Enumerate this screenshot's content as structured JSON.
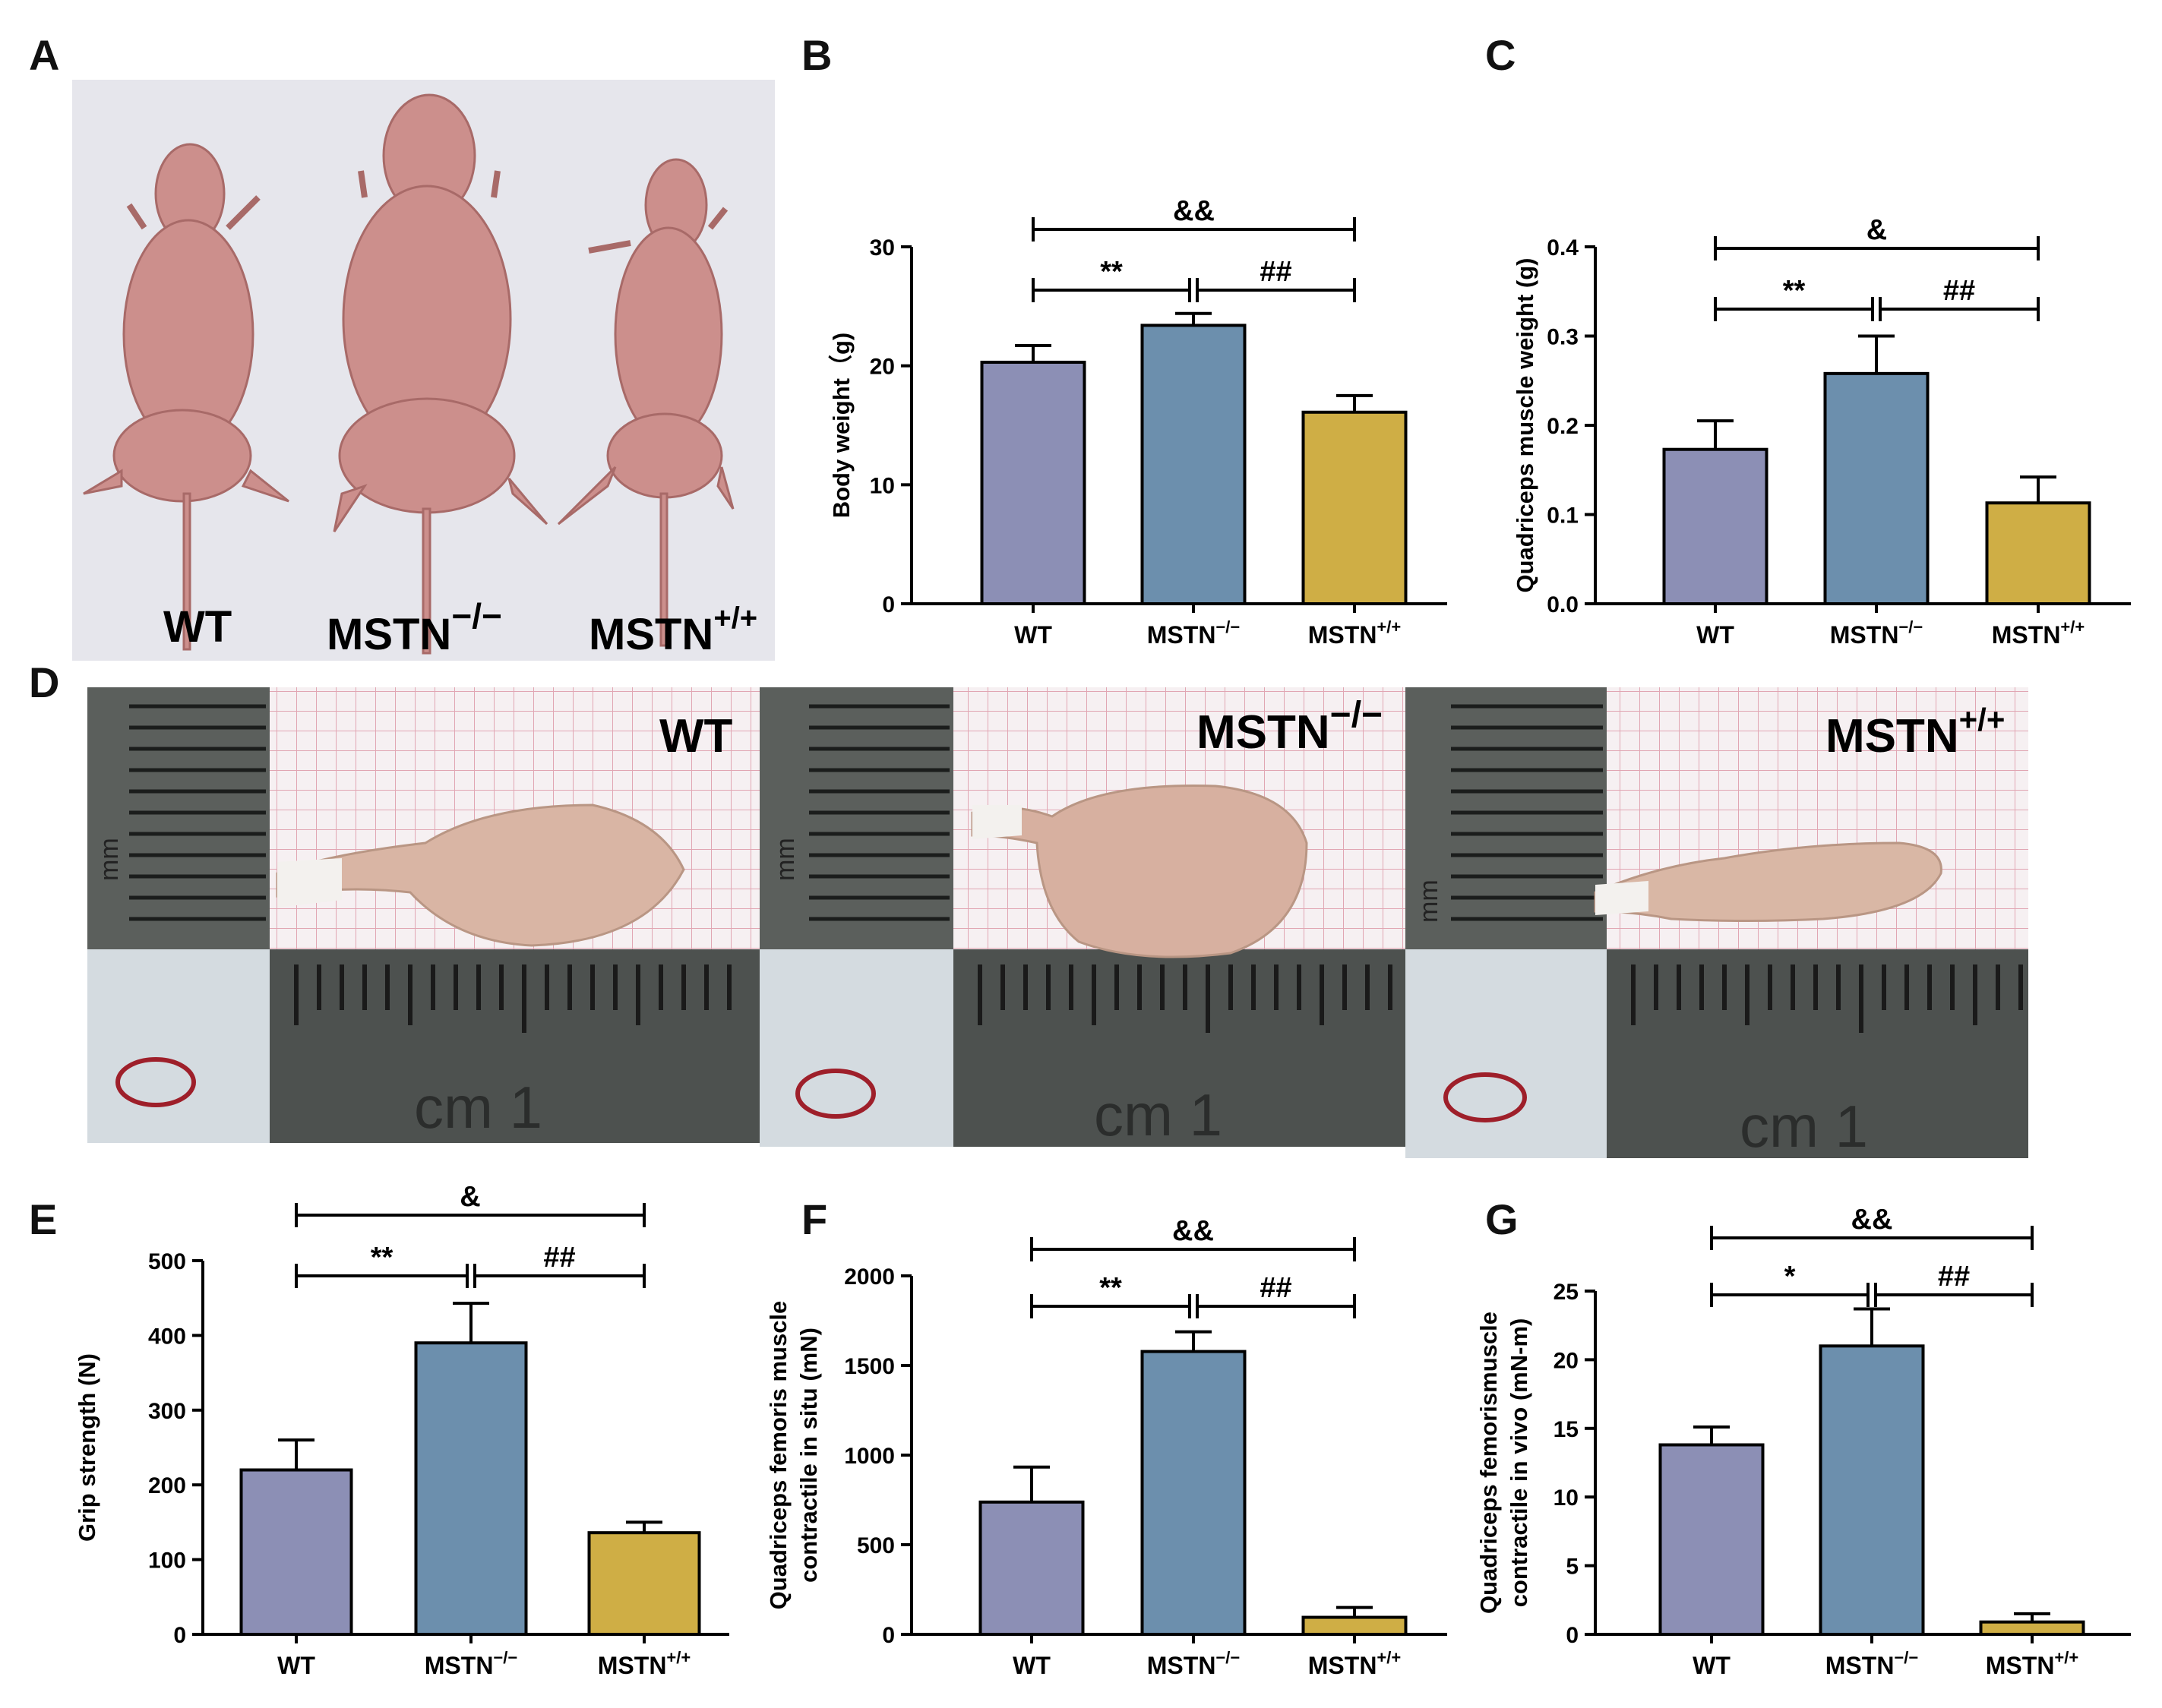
{
  "panel_labels": {
    "A": "A",
    "B": "B",
    "C": "C",
    "D": "D",
    "E": "E",
    "F": "F",
    "G": "G"
  },
  "photo_mice": {
    "labels": [
      {
        "base": "WT",
        "sup": ""
      },
      {
        "base": "MSTN",
        "sup": "−/−"
      },
      {
        "base": "MSTN",
        "sup": "+/+"
      }
    ]
  },
  "photo_muscle": {
    "labels": [
      {
        "base": "WT",
        "sup": ""
      },
      {
        "base": "MSTN",
        "sup": "−/−"
      },
      {
        "base": "MSTN",
        "sup": "+/+"
      }
    ],
    "ruler_text": "cm 1",
    "scale_text": "mm"
  },
  "colors": {
    "WT": "#8c8fb5",
    "MSTN_KO": "#6c8fad",
    "MSTN_WT": "#cfae45"
  },
  "chart_data": [
    {
      "id": "B",
      "type": "bar",
      "title": "",
      "categories": [
        {
          "base": "WT",
          "sup": ""
        },
        {
          "base": "MSTN",
          "sup": "−/−"
        },
        {
          "base": "MSTN",
          "sup": "+/+"
        }
      ],
      "values": [
        20.3,
        23.4,
        16.1
      ],
      "errors": [
        1.4,
        1.0,
        1.4
      ],
      "ylabel": "Body weight（g)",
      "ylim": [
        0,
        30
      ],
      "yticks": [
        0,
        10,
        20,
        30
      ],
      "ytick_labels": [
        "0",
        "10",
        "20",
        "30"
      ],
      "sig": [
        {
          "from": 0,
          "to": 1,
          "level": 1,
          "text": "**"
        },
        {
          "from": 1,
          "to": 2,
          "level": 1,
          "text": "##"
        },
        {
          "from": 0,
          "to": 2,
          "level": 2,
          "text": "&&"
        }
      ]
    },
    {
      "id": "C",
      "type": "bar",
      "title": "",
      "categories": [
        {
          "base": "WT",
          "sup": ""
        },
        {
          "base": "MSTN",
          "sup": "−/−"
        },
        {
          "base": "MSTN",
          "sup": "+/+"
        }
      ],
      "values": [
        0.173,
        0.258,
        0.113
      ],
      "errors": [
        0.032,
        0.042,
        0.029
      ],
      "ylabel": "Quadriceps muscle weight (g)",
      "ylim": [
        0,
        0.4
      ],
      "yticks": [
        0,
        0.1,
        0.2,
        0.3,
        0.4
      ],
      "ytick_labels": [
        "0.0",
        "0.1",
        "0.2",
        "0.3",
        "0.4"
      ],
      "sig": [
        {
          "from": 0,
          "to": 1,
          "level": 1,
          "text": "**"
        },
        {
          "from": 1,
          "to": 2,
          "level": 1,
          "text": "##"
        },
        {
          "from": 0,
          "to": 2,
          "level": 2,
          "text": "&"
        }
      ]
    },
    {
      "id": "E",
      "type": "bar",
      "title": "",
      "categories": [
        {
          "base": "WT",
          "sup": ""
        },
        {
          "base": "MSTN",
          "sup": "−/−"
        },
        {
          "base": "MSTN",
          "sup": "+/+"
        }
      ],
      "values": [
        220,
        390,
        136
      ],
      "errors": [
        40,
        53,
        14
      ],
      "ylabel": "Grip strength (N)",
      "ylim": [
        0,
        500
      ],
      "yticks": [
        0,
        100,
        200,
        300,
        400,
        500
      ],
      "ytick_labels": [
        "0",
        "100",
        "200",
        "300",
        "400",
        "500"
      ],
      "sig": [
        {
          "from": 0,
          "to": 1,
          "level": 1,
          "text": "**"
        },
        {
          "from": 1,
          "to": 2,
          "level": 1,
          "text": "##"
        },
        {
          "from": 0,
          "to": 2,
          "level": 2,
          "text": "&"
        }
      ]
    },
    {
      "id": "F",
      "type": "bar",
      "title": "",
      "categories": [
        {
          "base": "WT",
          "sup": ""
        },
        {
          "base": "MSTN",
          "sup": "−/−"
        },
        {
          "base": "MSTN",
          "sup": "+/+"
        }
      ],
      "values": [
        738,
        1578,
        95
      ],
      "errors": [
        195,
        110,
        55
      ],
      "ylabel": [
        "Quadriceps femoris muscle",
        "contractile in situ (mN)"
      ],
      "ylim": [
        0,
        2000
      ],
      "yticks": [
        0,
        500,
        1000,
        1500,
        2000
      ],
      "ytick_labels": [
        "0",
        "500",
        "1000",
        "1500",
        "2000"
      ],
      "sig": [
        {
          "from": 0,
          "to": 1,
          "level": 1,
          "text": "**"
        },
        {
          "from": 1,
          "to": 2,
          "level": 1,
          "text": "##"
        },
        {
          "from": 0,
          "to": 2,
          "level": 2,
          "text": "&&"
        }
      ]
    },
    {
      "id": "G",
      "type": "bar",
      "title": "",
      "categories": [
        {
          "base": "WT",
          "sup": ""
        },
        {
          "base": "MSTN",
          "sup": "−/−"
        },
        {
          "base": "MSTN",
          "sup": "+/+"
        }
      ],
      "values": [
        13.8,
        21.0,
        0.9
      ],
      "errors": [
        1.3,
        2.7,
        0.6
      ],
      "ylabel": [
        "Quadriceps femorismuscle",
        "contractile in vivo (mN-m)"
      ],
      "ylim": [
        0,
        25
      ],
      "yticks": [
        0,
        5,
        10,
        15,
        20,
        25
      ],
      "ytick_labels": [
        "0",
        "5",
        "10",
        "15",
        "20",
        "25"
      ],
      "sig": [
        {
          "from": 0,
          "to": 1,
          "level": 1,
          "text": "*"
        },
        {
          "from": 1,
          "to": 2,
          "level": 1,
          "text": "##"
        },
        {
          "from": 0,
          "to": 2,
          "level": 2,
          "text": "&&"
        }
      ]
    }
  ]
}
